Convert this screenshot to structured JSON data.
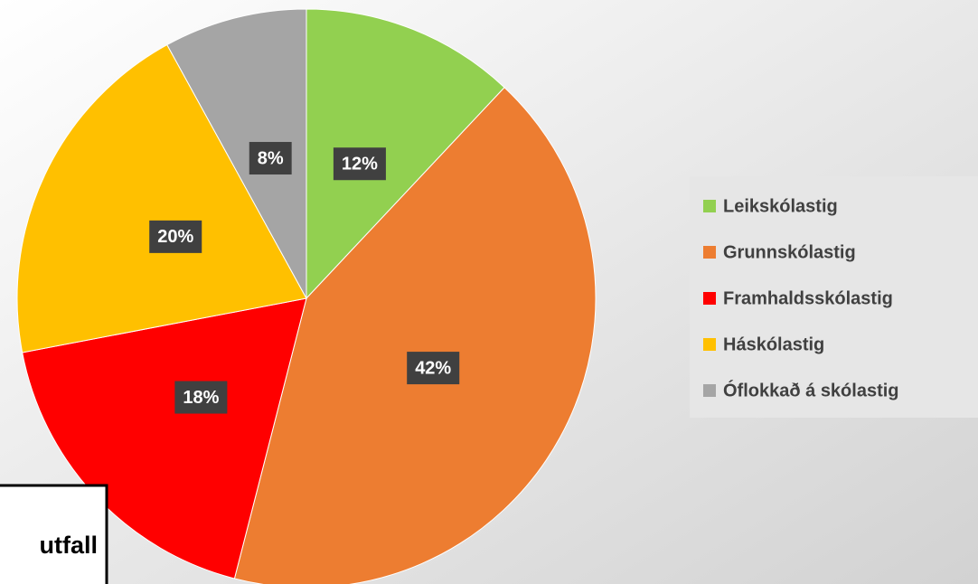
{
  "chart_data": {
    "type": "pie",
    "categories": [
      "Leikskólastig",
      "Grunnskólastig",
      "Framhaldsskólastig",
      "Háskólastig",
      "Óflokkað á skólastig"
    ],
    "values": [
      12,
      42,
      18,
      20,
      8
    ],
    "value_labels": [
      "12%",
      "42%",
      "18%",
      "20%",
      "8%"
    ],
    "colors": [
      "#92d050",
      "#ed7d31",
      "#ff0000",
      "#ffc000",
      "#a5a5a5"
    ],
    "legend": "right",
    "annotation": "utfall"
  }
}
